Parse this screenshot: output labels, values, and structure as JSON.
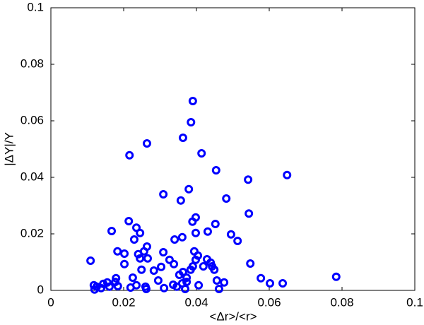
{
  "chart_data": {
    "type": "scatter",
    "x_label": "<Δr>/<r>",
    "y_label": "|ΔY|/Y",
    "color": "#0000ff",
    "xlim": [
      0,
      0.1
    ],
    "ylim": [
      0,
      0.1
    ],
    "xticks": [
      0,
      0.02,
      0.04,
      0.06,
      0.08,
      0.1
    ],
    "yticks": [
      0,
      0.02,
      0.04,
      0.06,
      0.08,
      0.1
    ],
    "x": [
      0.039,
      0.0385,
      0.0363,
      0.0216,
      0.0264,
      0.0414,
      0.0454,
      0.0649,
      0.0542,
      0.0309,
      0.0379,
      0.0357,
      0.0482,
      0.0544,
      0.0398,
      0.0389,
      0.0214,
      0.0452,
      0.0235,
      0.0245,
      0.0167,
      0.0398,
      0.0431,
      0.0495,
      0.0513,
      0.0361,
      0.034,
      0.0229,
      0.0264,
      0.0256,
      0.024,
      0.0309,
      0.0183,
      0.0202,
      0.0394,
      0.0404,
      0.0109,
      0.0266,
      0.0245,
      0.0326,
      0.0429,
      0.0439,
      0.0419,
      0.0443,
      0.0398,
      0.039,
      0.0338,
      0.0202,
      0.0548,
      0.0384,
      0.0449,
      0.0283,
      0.0363,
      0.0249,
      0.0303,
      0.0225,
      0.0295,
      0.0179,
      0.0177,
      0.0353,
      0.0373,
      0.0373,
      0.0456,
      0.0476,
      0.0577,
      0.0602,
      0.0637,
      0.0784,
      0.0118,
      0.0126,
      0.0144,
      0.0155,
      0.0161,
      0.0138,
      0.012,
      0.0184,
      0.0219,
      0.0235,
      0.026,
      0.0262,
      0.0311,
      0.0336,
      0.0346,
      0.0369,
      0.0361,
      0.0462,
      0.0406
    ],
    "values": [
      0.067,
      0.0595,
      0.054,
      0.0478,
      0.052,
      0.0485,
      0.0425,
      0.0408,
      0.0392,
      0.034,
      0.0358,
      0.0318,
      0.0325,
      0.0272,
      0.0258,
      0.0243,
      0.0245,
      0.0235,
      0.0222,
      0.0203,
      0.021,
      0.0203,
      0.0208,
      0.0198,
      0.0175,
      0.0188,
      0.018,
      0.018,
      0.0155,
      0.0138,
      0.0128,
      0.0135,
      0.0138,
      0.013,
      0.0138,
      0.0123,
      0.0105,
      0.0113,
      0.0113,
      0.0108,
      0.011,
      0.0098,
      0.0085,
      0.0085,
      0.0108,
      0.0085,
      0.0093,
      0.0093,
      0.0095,
      0.0073,
      0.0073,
      0.007,
      0.0065,
      0.0073,
      0.0083,
      0.0045,
      0.0035,
      0.0043,
      0.003,
      0.0055,
      0.0045,
      0.003,
      0.0035,
      0.0028,
      0.0043,
      0.0025,
      0.0025,
      0.0048,
      0.0018,
      0.0013,
      0.0023,
      0.0028,
      0.0013,
      0.0008,
      0.0003,
      0.0015,
      0.001,
      0.0018,
      0.0013,
      0.0005,
      0.0008,
      0.002,
      0.0013,
      0.0005,
      0.0025,
      0.0005,
      0.0018
    ]
  }
}
